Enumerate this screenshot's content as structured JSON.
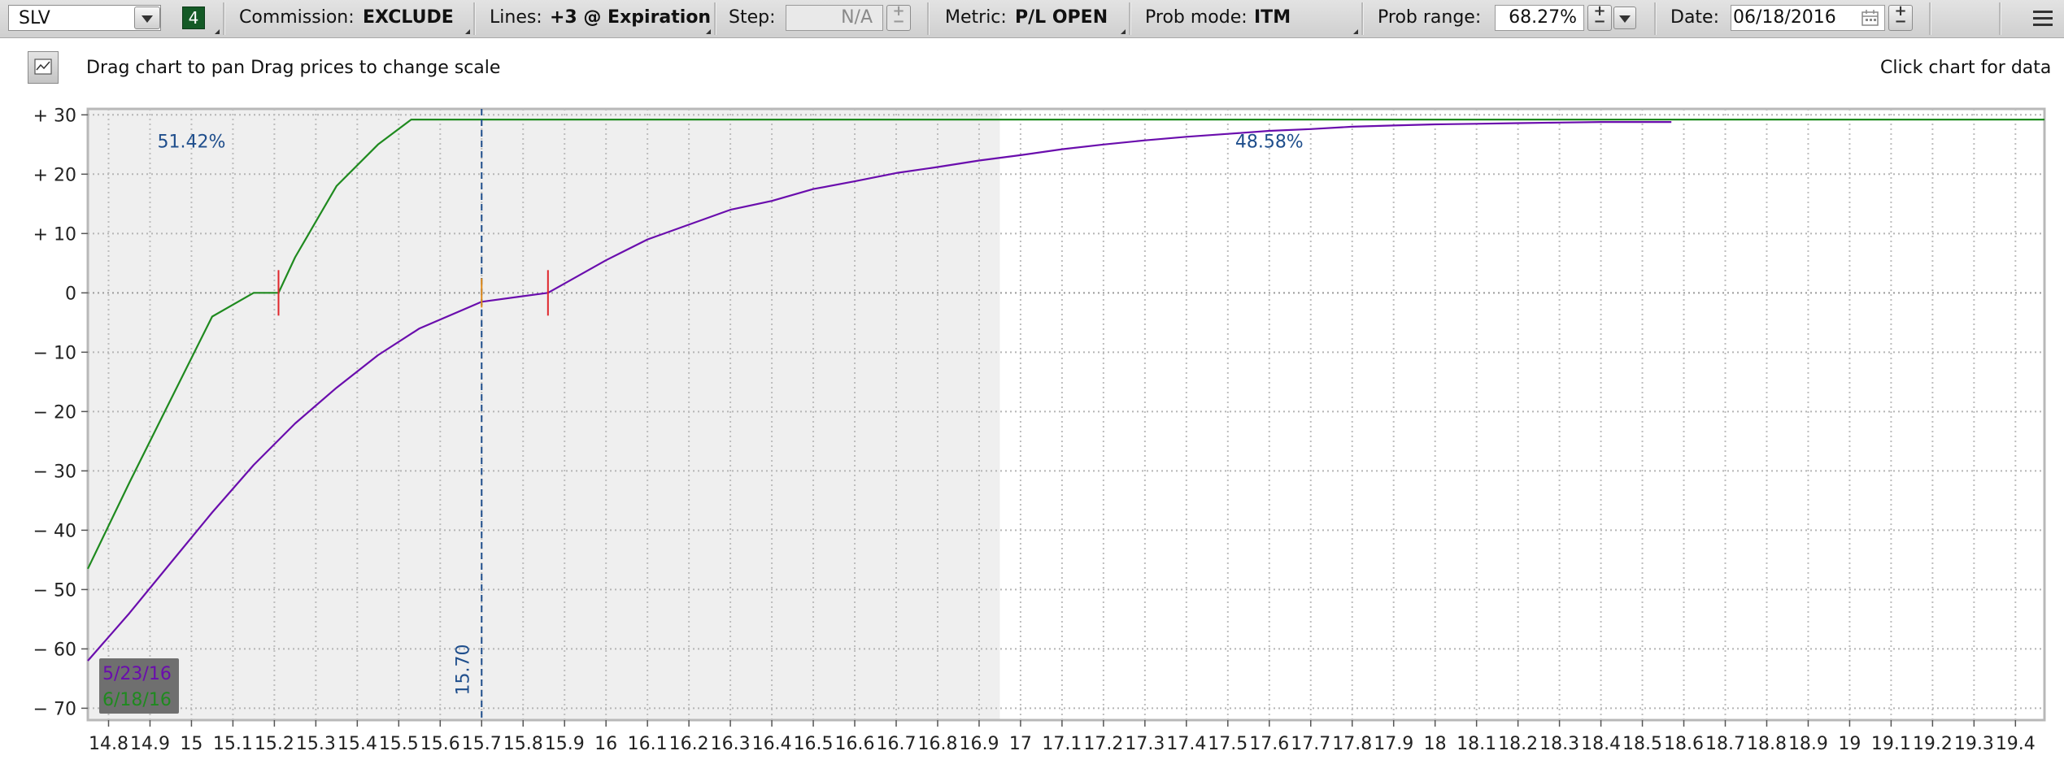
{
  "toolbar": {
    "symbol": "SLV",
    "badge": "4",
    "commission_label": "Commission:",
    "commission_value": "EXCLUDE",
    "lines_label": "Lines:",
    "lines_value": "+3 @ Expiration",
    "step_label": "Step:",
    "step_value": "N/A",
    "metric_label": "Metric:",
    "metric_value": "P/L OPEN",
    "prob_mode_label": "Prob mode:",
    "prob_mode_value": "ITM",
    "prob_range_label": "Prob range:",
    "prob_range_value": "68.27%",
    "date_label": "Date:",
    "date_value": "06/18/2016"
  },
  "header": {
    "hint": "Drag chart to pan Drag prices to change scale",
    "click_hint": "Click chart for data"
  },
  "colors": {
    "purple": "#6a0dad",
    "green": "#1f8a1f",
    "blue": "#1f4e8c",
    "red": "#e0262b",
    "orange": "#e08a1a"
  },
  "chart_data": {
    "type": "line",
    "xlim": [
      14.75,
      19.47
    ],
    "ylim": [
      -72,
      31
    ],
    "yticks": [
      30,
      20,
      10,
      0,
      -10,
      -20,
      -30,
      -40,
      -50,
      -60,
      -70
    ],
    "ytick_labels": [
      "+ 30",
      "+ 20",
      "+ 10",
      "0",
      "− 10",
      "− 20",
      "− 30",
      "− 40",
      "− 50",
      "− 60",
      "− 70"
    ],
    "xticks": [
      14.8,
      14.9,
      15,
      15.1,
      15.2,
      15.3,
      15.4,
      15.5,
      15.6,
      15.7,
      15.8,
      15.9,
      16,
      16.1,
      16.2,
      16.3,
      16.4,
      16.5,
      16.6,
      16.7,
      16.8,
      16.9,
      17,
      17.1,
      17.2,
      17.3,
      17.4,
      17.5,
      17.6,
      17.7,
      17.8,
      17.9,
      18,
      18.1,
      18.2,
      18.3,
      18.4,
      18.5,
      18.6,
      18.7,
      18.8,
      18.9,
      19,
      19.1,
      19.2,
      19.3,
      19.4
    ],
    "xtick_labels": [
      "14.8",
      "14.9",
      "15",
      "15.1",
      "15.2",
      "15.3",
      "15.4",
      "15.5",
      "15.6",
      "15.7",
      "15.8",
      "15.9",
      "16",
      "16.1",
      "16.2",
      "16.3",
      "16.4",
      "16.5",
      "16.6",
      "16.7",
      "16.8",
      "16.9",
      "17",
      "17.1",
      "17.2",
      "17.3",
      "17.4",
      "17.5",
      "17.6",
      "17.7",
      "17.8",
      "17.9",
      "18",
      "18.1",
      "18.2",
      "18.3",
      "18.4",
      "18.5",
      "18.6",
      "18.7",
      "18.8",
      "18.9",
      "19",
      "19.1",
      "19.2",
      "19.3",
      "19.4"
    ],
    "grid": true,
    "series": [
      {
        "name": "5/23/16",
        "color": "#6a0dad",
        "x": [
          14.75,
          14.85,
          14.95,
          15.05,
          15.15,
          15.25,
          15.35,
          15.45,
          15.55,
          15.7,
          15.86,
          16.0,
          16.1,
          16.2,
          16.3,
          16.4,
          16.5,
          16.6,
          16.7,
          16.8,
          16.9,
          17.0,
          17.1,
          17.2,
          17.3,
          17.4,
          17.5,
          17.6,
          17.7,
          17.8,
          17.9,
          18.0,
          18.1,
          18.2,
          18.3,
          18.4,
          18.5,
          18.57
        ],
        "y": [
          -62,
          -54,
          -45.5,
          -37,
          -29,
          -22,
          -16,
          -10.5,
          -6,
          -1.5,
          0,
          5.5,
          9,
          11.5,
          14,
          15.5,
          17.5,
          18.8,
          20.2,
          21.2,
          22.3,
          23.2,
          24.2,
          25,
          25.7,
          26.3,
          26.8,
          27.3,
          27.6,
          28,
          28.2,
          28.4,
          28.5,
          28.6,
          28.7,
          28.8,
          28.8,
          28.8
        ]
      },
      {
        "name": "6/18/16",
        "color": "#1f8a1f",
        "x": [
          14.75,
          14.85,
          14.95,
          15.05,
          15.15,
          15.21,
          15.25,
          15.35,
          15.45,
          15.53,
          19.47
        ],
        "y": [
          -46.5,
          -32,
          -18,
          -4,
          0,
          0,
          6,
          18,
          25,
          29.2,
          29.2
        ]
      }
    ],
    "probabilities": [
      {
        "label": "51.42%",
        "x": 15.0,
        "y": 24.5
      },
      {
        "label": "48.58%",
        "x": 17.6,
        "y": 24.5
      }
    ],
    "shaded_region": [
      14.75,
      16.95
    ],
    "current_price": 15.7,
    "current_price_label": "15.70",
    "breakevens": [
      {
        "x": 15.21,
        "color": "#e0262b"
      },
      {
        "x": 15.86,
        "color": "#e0262b"
      },
      {
        "x": 15.7,
        "color": "#e08a1a"
      }
    ],
    "legend": [
      {
        "label": "5/23/16",
        "color": "#6a0dad"
      },
      {
        "label": "6/18/16",
        "color": "#1f8a1f"
      }
    ],
    "legend_position": "bottom-left"
  }
}
